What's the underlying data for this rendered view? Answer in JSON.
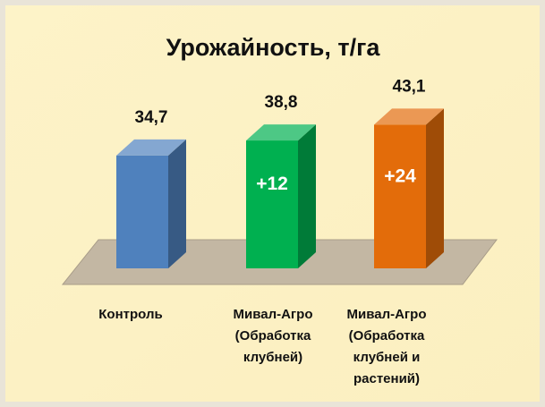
{
  "chart_data": {
    "type": "bar3d",
    "title": "Урожайность, т/га",
    "categories": [
      "Контроль",
      "Мивал-Агро\n(Обработка\nклубней)",
      "Мивал-Агро\n(Обработка\nклубней и\nрастений)"
    ],
    "values": [
      34.7,
      38.8,
      43.1
    ],
    "value_labels": [
      "34,7",
      "38,8",
      "43,1"
    ],
    "annotations": [
      null,
      "+12",
      "+24"
    ],
    "colors": [
      "#4f81bd",
      "#00b050",
      "#e36c0a"
    ],
    "ylim": [
      4,
      60
    ]
  }
}
